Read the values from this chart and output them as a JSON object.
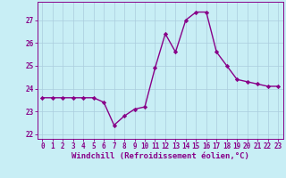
{
  "x": [
    0,
    1,
    2,
    3,
    4,
    5,
    6,
    7,
    8,
    9,
    10,
    11,
    12,
    13,
    14,
    15,
    16,
    17,
    18,
    19,
    20,
    21,
    22,
    23
  ],
  "y": [
    23.6,
    23.6,
    23.6,
    23.6,
    23.6,
    23.6,
    23.4,
    22.4,
    22.8,
    23.1,
    23.2,
    24.9,
    26.4,
    25.6,
    27.0,
    27.35,
    27.35,
    25.6,
    25.0,
    24.4,
    24.3,
    24.2,
    24.1,
    24.1
  ],
  "line_color": "#880088",
  "marker": "D",
  "marker_size": 2.2,
  "bg_color": "#c8eef5",
  "grid_color": "#aaccdd",
  "xlabel": "Windchill (Refroidissement éolien,°C)",
  "xlabel_color": "#880088",
  "tick_color": "#880088",
  "ylim": [
    21.8,
    27.8
  ],
  "xlim": [
    -0.5,
    23.5
  ],
  "yticks": [
    22,
    23,
    24,
    25,
    26,
    27
  ],
  "xticks": [
    0,
    1,
    2,
    3,
    4,
    5,
    6,
    7,
    8,
    9,
    10,
    11,
    12,
    13,
    14,
    15,
    16,
    17,
    18,
    19,
    20,
    21,
    22,
    23
  ],
  "tick_fontsize": 5.5,
  "xlabel_fontsize": 6.5,
  "linewidth": 1.0
}
